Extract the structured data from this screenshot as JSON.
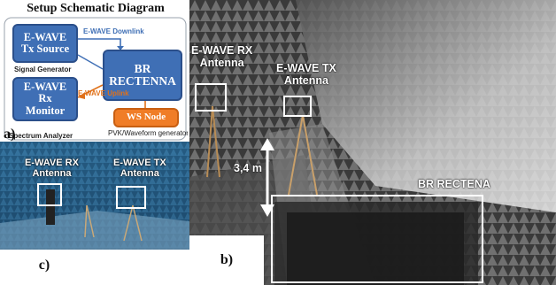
{
  "schematic": {
    "title": "Setup Schematic Diagram",
    "tx_source": {
      "line1": "E-WAVE",
      "line2": "Tx Source"
    },
    "signal_generator": "Signal Generator",
    "rx_monitor": {
      "line1": "E-WAVE",
      "line2": "Rx",
      "line3": "Monitor"
    },
    "spectrum_analyzer": "Spectrum Analyzer",
    "br_rectenna": {
      "line1": "BR",
      "line2": "RECTENNA"
    },
    "downlink": "E-WAVE Downlink",
    "uplink": "E-WAVE Uplink",
    "ws_node": "WS Node",
    "pvk_generator": "PVK/Waveform generator",
    "label": "a)"
  },
  "photo_b": {
    "rx_antenna": {
      "line1": "E-WAVE RX",
      "line2": "Antenna"
    },
    "tx_antenna": {
      "line1": "E-WAVE TX",
      "line2": "Antenna"
    },
    "distance": "3,4 m",
    "rectenna": "BR RECTENA",
    "label": "b)"
  },
  "photo_c": {
    "rx_antenna": {
      "line1": "E-WAVE RX",
      "line2": "Antenna"
    },
    "tx_antenna": {
      "line1": "E-WAVE TX",
      "line2": "Antenna"
    },
    "label": "c)"
  },
  "colors": {
    "box_blue": "#3f6fb5",
    "ws_orange": "#f07d27",
    "downlink_line": "#3f6fb5",
    "uplink_line": "#e0711a"
  }
}
